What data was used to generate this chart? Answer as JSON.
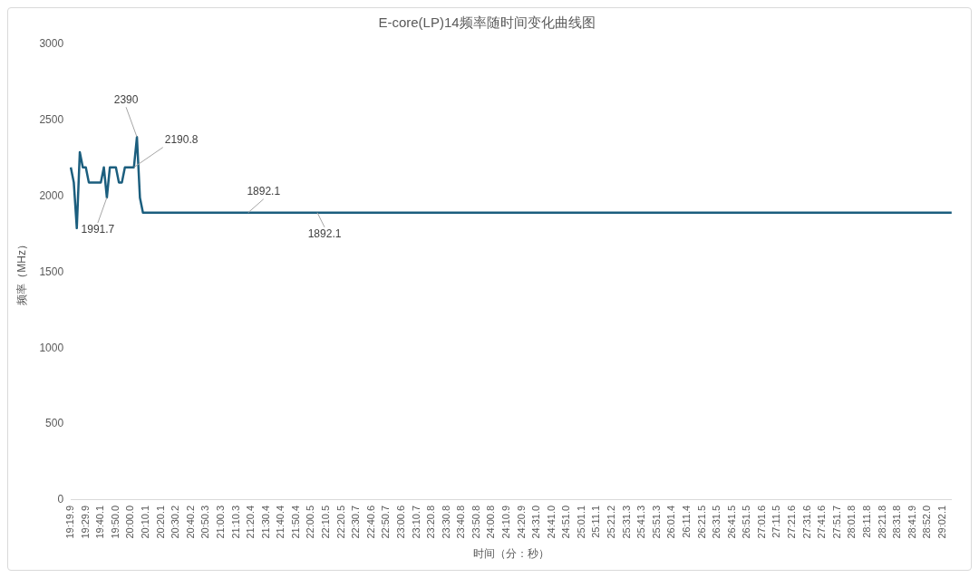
{
  "chart_data": {
    "type": "line",
    "title": "E-core(LP)14频率随时间变化曲线图",
    "xlabel": "时间（分：秒）",
    "ylabel": "频率（MHz）",
    "categories": [
      "19:19.9",
      null,
      null,
      null,
      null,
      "19:29.9",
      null,
      null,
      null,
      null,
      "19:40.1",
      null,
      null,
      null,
      null,
      "19:50.0",
      null,
      null,
      null,
      null,
      "20:00.0",
      null,
      null,
      null,
      null,
      "20:10.1",
      null,
      null,
      null,
      null,
      "20:20.1",
      null,
      null,
      null,
      null,
      "20:30.2",
      null,
      null,
      null,
      null,
      "20:40.2",
      null,
      null,
      null,
      null,
      "20:50.3",
      null,
      null,
      null,
      null,
      "21:00.3",
      null,
      null,
      null,
      null,
      "21:10.3",
      null,
      null,
      null,
      null,
      "21:20.4",
      null,
      null,
      null,
      null,
      "21:30.4",
      null,
      null,
      null,
      null,
      "21:40.4",
      null,
      null,
      null,
      null,
      "21:50.4",
      null,
      null,
      null,
      null,
      "22:00.5",
      null,
      null,
      null,
      null,
      "22:10.5",
      null,
      null,
      null,
      null,
      "22:20.5",
      null,
      null,
      null,
      null,
      "22:30.7",
      null,
      null,
      null,
      null,
      "22:40.6",
      null,
      null,
      null,
      null,
      "22:50.7",
      null,
      null,
      null,
      null,
      "23:00.6",
      null,
      null,
      null,
      null,
      "23:10.7",
      null,
      null,
      null,
      null,
      "23:20.8",
      null,
      null,
      null,
      null,
      "23:30.8",
      null,
      null,
      null,
      null,
      "23:40.8",
      null,
      null,
      null,
      null,
      "23:50.8",
      null,
      null,
      null,
      null,
      "24:00.8",
      null,
      null,
      null,
      null,
      "24:10.9",
      null,
      null,
      null,
      null,
      "24:20.9",
      null,
      null,
      null,
      null,
      "24:31.0",
      null,
      null,
      null,
      null,
      "24:41.0",
      null,
      null,
      null,
      null,
      "24:51.0",
      null,
      null,
      null,
      null,
      "25:01.1",
      null,
      null,
      null,
      null,
      "25:11.1",
      null,
      null,
      null,
      null,
      "25:21.2",
      null,
      null,
      null,
      null,
      "25:31.3",
      null,
      null,
      null,
      null,
      "25:41.3",
      null,
      null,
      null,
      null,
      "25:51.3",
      null,
      null,
      null,
      null,
      "26:01.4",
      null,
      null,
      null,
      null,
      "26:11.4",
      null,
      null,
      null,
      null,
      "26:21.5",
      null,
      null,
      null,
      null,
      "26:31.5",
      null,
      null,
      null,
      null,
      "26:41.5",
      null,
      null,
      null,
      null,
      "26:51.5",
      null,
      null,
      null,
      null,
      "27:01.6",
      null,
      null,
      null,
      null,
      "27:11.5",
      null,
      null,
      null,
      null,
      "27:21.6",
      null,
      null,
      null,
      null,
      "27:31.6",
      null,
      null,
      null,
      null,
      "27:41.6",
      null,
      null,
      null,
      null,
      "27:51.7",
      null,
      null,
      null,
      null,
      "28:01.8",
      null,
      null,
      null,
      null,
      "28:11.8",
      null,
      null,
      null,
      null,
      "28:21.8",
      null,
      null,
      null,
      null,
      "28:31.8",
      null,
      null,
      null,
      null,
      "28:41.9",
      null,
      null,
      null,
      null,
      "28:52.0",
      null,
      null,
      null,
      null,
      "29:02.1",
      null,
      null,
      null
    ],
    "series": [
      {
        "color": "#1b5e7e",
        "values": [
          2190.8,
          2091,
          1790,
          2290,
          2190.8,
          2190.8,
          2091,
          2091,
          2091,
          2091,
          2091,
          2190.8,
          1991.7,
          2190.8,
          2190.8,
          2190.8,
          2091,
          2091,
          2190.8,
          2190.8,
          2190.8,
          2190.8,
          2390,
          1990,
          1892.1,
          1892.1,
          1892.1,
          1892.1,
          1892.1,
          1892.1,
          1892.1,
          1892.1,
          1892.1,
          1892.1,
          1892.1,
          1892.1,
          1892.1,
          1892.1,
          1892.1,
          1892.1,
          1892.1,
          1892.1,
          1892.1,
          1892.1,
          1892.1,
          1892.1,
          1892.1,
          1892.1,
          1892.1,
          1892.1,
          1892.1,
          1892.1,
          1892.1,
          1892.1,
          1892.1,
          1892.1,
          1892.1,
          1892.1,
          1892.1,
          1892.1,
          1892.1,
          1892.1,
          1892.1,
          1892.1,
          1892.1,
          1892.1,
          1892.1,
          1892.1,
          1892.1,
          1892.1,
          1892.1,
          1892.1,
          1892.1,
          1892.1,
          1892.1,
          1892.1,
          1892.1,
          1892.1,
          1892.1,
          1892.1,
          1892.1,
          1892.1,
          1892.1,
          1892.1,
          1892.1,
          1892.1,
          1892.1,
          1892.1,
          1892.1,
          1892.1,
          1892.1,
          1892.1,
          1892.1,
          1892.1,
          1892.1,
          1892.1,
          1892.1,
          1892.1,
          1892.1,
          1892.1,
          1892.1,
          1892.1,
          1892.1,
          1892.1,
          1892.1,
          1892.1,
          1892.1,
          1892.1,
          1892.1,
          1892.1,
          1892.1,
          1892.1,
          1892.1,
          1892.1,
          1892.1,
          1892.1,
          1892.1,
          1892.1,
          1892.1,
          1892.1,
          1892.1,
          1892.1,
          1892.1,
          1892.1,
          1892.1,
          1892.1,
          1892.1,
          1892.1,
          1892.1,
          1892.1,
          1892.1,
          1892.1,
          1892.1,
          1892.1,
          1892.1,
          1892.1,
          1892.1,
          1892.1,
          1892.1,
          1892.1,
          1892.1,
          1892.1,
          1892.1,
          1892.1,
          1892.1,
          1892.1,
          1892.1,
          1892.1,
          1892.1,
          1892.1,
          1892.1,
          1892.1,
          1892.1,
          1892.1,
          1892.1,
          1892.1,
          1892.1,
          1892.1,
          1892.1,
          1892.1,
          1892.1,
          1892.1,
          1892.1,
          1892.1,
          1892.1,
          1892.1,
          1892.1,
          1892.1,
          1892.1,
          1892.1,
          1892.1,
          1892.1,
          1892.1,
          1892.1,
          1892.1,
          1892.1,
          1892.1,
          1892.1,
          1892.1,
          1892.1,
          1892.1,
          1892.1,
          1892.1,
          1892.1,
          1892.1,
          1892.1,
          1892.1,
          1892.1,
          1892.1,
          1892.1,
          1892.1,
          1892.1,
          1892.1,
          1892.1,
          1892.1,
          1892.1,
          1892.1,
          1892.1,
          1892.1,
          1892.1,
          1892.1,
          1892.1,
          1892.1,
          1892.1,
          1892.1,
          1892.1,
          1892.1,
          1892.1,
          1892.1,
          1892.1,
          1892.1,
          1892.1,
          1892.1,
          1892.1,
          1892.1,
          1892.1,
          1892.1,
          1892.1,
          1892.1,
          1892.1,
          1892.1,
          1892.1,
          1892.1,
          1892.1,
          1892.1,
          1892.1,
          1892.1,
          1892.1,
          1892.1,
          1892.1,
          1892.1,
          1892.1,
          1892.1,
          1892.1,
          1892.1,
          1892.1,
          1892.1,
          1892.1,
          1892.1,
          1892.1,
          1892.1,
          1892.1,
          1892.1,
          1892.1,
          1892.1,
          1892.1,
          1892.1,
          1892.1,
          1892.1,
          1892.1,
          1892.1,
          1892.1,
          1892.1,
          1892.1,
          1892.1,
          1892.1,
          1892.1,
          1892.1,
          1892.1,
          1892.1,
          1892.1,
          1892.1,
          1892.1,
          1892.1,
          1892.1,
          1892.1,
          1892.1,
          1892.1,
          1892.1,
          1892.1,
          1892.1,
          1892.1,
          1892.1,
          1892.1,
          1892.1,
          1892.1,
          1892.1,
          1892.1,
          1892.1,
          1892.1,
          1892.1,
          1892.1,
          1892.1,
          1892.1,
          1892.1,
          1892.1,
          1892.1,
          1892.1,
          1892.1,
          1892.1,
          1892.1,
          1892.1,
          1892.1,
          1892.1
        ],
        "value_labels": [
          null,
          null,
          null,
          null,
          null,
          null,
          null,
          null,
          null,
          null,
          null,
          null,
          "1991.7",
          null,
          null,
          null,
          null,
          null,
          null,
          null,
          null,
          "2190.8",
          "2390",
          null,
          null,
          null,
          null,
          null,
          null,
          null,
          null,
          null,
          null,
          null,
          null,
          null,
          null,
          null,
          null,
          null,
          null,
          null,
          null,
          null,
          null,
          null,
          null,
          null,
          null,
          null,
          null,
          null,
          null,
          null,
          null,
          null,
          null,
          null,
          null,
          "1892.1",
          null,
          null,
          null,
          null,
          null,
          null,
          null,
          null,
          null,
          null,
          null,
          null,
          null,
          null,
          null,
          null,
          null,
          null,
          null,
          null,
          null,
          null,
          "1892.1",
          null,
          null,
          null,
          null,
          null,
          null,
          null,
          null,
          null,
          null,
          null,
          null,
          null,
          null,
          null,
          null,
          null,
          null,
          null,
          null,
          null,
          null,
          null,
          null,
          null,
          null,
          null,
          null,
          null,
          null,
          null,
          null,
          null,
          null,
          null,
          null,
          null,
          null,
          null,
          null,
          null,
          null,
          null,
          null,
          null,
          null,
          null,
          null,
          null,
          null,
          null,
          null,
          null,
          null,
          null,
          null,
          null,
          null,
          null,
          null,
          null,
          null,
          null,
          null,
          null,
          null,
          null,
          null,
          null,
          null,
          null,
          null,
          null,
          null,
          null,
          null,
          null,
          null,
          null,
          null,
          null,
          null,
          null,
          null,
          null,
          null,
          null,
          null,
          null,
          null,
          null,
          null,
          null,
          null,
          null,
          null,
          null,
          null,
          null,
          null,
          null,
          null,
          null,
          null,
          null,
          null,
          null,
          null,
          null,
          null,
          null,
          null,
          null,
          null,
          null,
          null,
          null,
          null,
          null,
          null,
          null,
          null,
          null,
          null,
          null,
          null,
          null,
          null,
          null,
          null,
          null,
          null,
          null,
          null,
          null,
          null,
          null,
          null,
          null,
          null,
          null,
          null,
          null,
          null,
          null,
          null,
          null,
          null,
          null,
          null,
          null,
          null,
          null,
          null,
          null,
          null,
          null,
          null,
          null,
          null,
          null,
          null,
          null,
          null,
          null,
          null,
          null,
          null,
          null,
          null,
          null,
          null,
          null,
          null,
          null,
          null,
          null,
          null,
          null,
          null,
          null,
          null,
          null,
          null,
          null,
          null,
          null,
          null,
          null,
          null,
          null,
          null,
          null,
          null,
          null,
          null,
          null,
          null,
          null,
          null,
          null,
          null,
          null,
          null,
          null,
          null,
          null,
          null,
          null,
          null,
          null
        ]
      }
    ],
    "ylim": [
      0,
      3000
    ],
    "yticks": [
      0,
      500,
      1000,
      1500,
      2000,
      2500,
      3000
    ],
    "marker": "none",
    "line_style": "solid"
  }
}
